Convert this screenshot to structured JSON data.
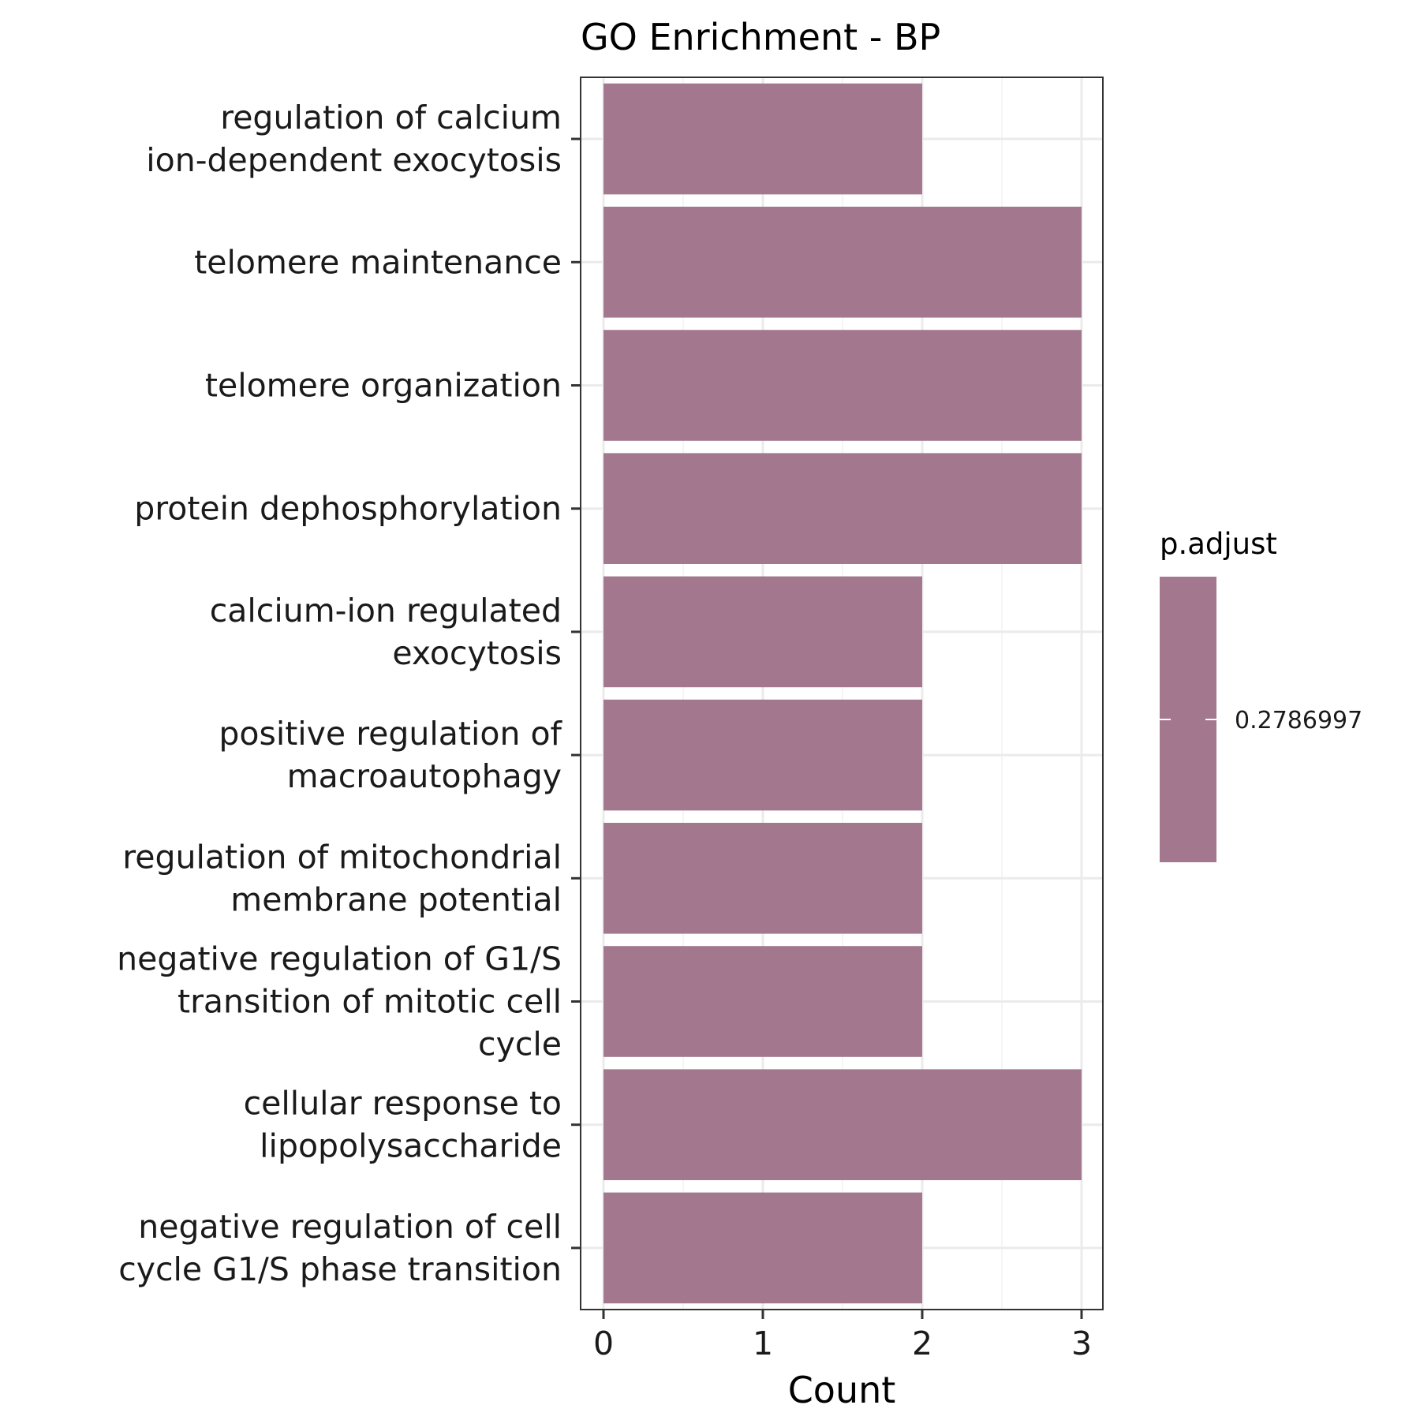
{
  "chart_data": {
    "type": "bar",
    "orientation": "horizontal",
    "title": "GO Enrichment - BP",
    "xlabel": "Count",
    "ylabel": "",
    "xlim": [
      0,
      3
    ],
    "x_ticks": [
      0,
      1,
      2,
      3
    ],
    "grid": true,
    "categories": [
      "regulation of calcium\nion-dependent exocytosis",
      "telomere maintenance",
      "telomere organization",
      "protein dephosphorylation",
      "calcium-ion regulated\nexocytosis",
      "positive regulation of\nmacroautophagy",
      "regulation of mitochondrial\nmembrane potential",
      "negative regulation of G1/S\ntransition of mitotic cell\ncycle",
      "cellular response to\nlipopolysaccharide",
      "negative regulation of cell\ncycle G1/S phase transition"
    ],
    "values": [
      2,
      3,
      3,
      3,
      2,
      2,
      2,
      2,
      3,
      2
    ],
    "bar_color": "#a3778d",
    "legend": {
      "title": "p.adjust",
      "placement": "right",
      "labels": [
        "0.2786997"
      ],
      "color": "#a3778d"
    }
  }
}
